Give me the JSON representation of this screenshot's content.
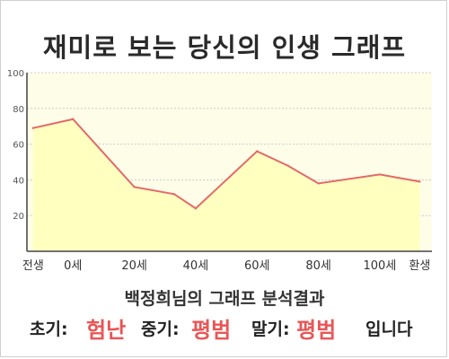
{
  "title": "재미로 보는 당신의 인생 그래프",
  "caption": "백정희님의 그래프 분석결과",
  "summary": {
    "early_label": "초기:",
    "early_value": "험난",
    "mid_label": "중기:",
    "mid_value": "평범",
    "late_label": "말기:",
    "late_value": "평범",
    "ending": "입니다"
  },
  "colors": {
    "plot_background": "#fefde8",
    "area_fill": "#ffffc0",
    "line": "#e26a6a",
    "accent_text": "#e85656",
    "grid": "#cccccc"
  },
  "chart_data": {
    "type": "area",
    "categories": [
      "전생",
      "0세",
      "20세",
      "40세",
      "60세",
      "80세",
      "100세",
      "환생"
    ],
    "x": [
      -13,
      0,
      20,
      33,
      40,
      60,
      70,
      80,
      100,
      113
    ],
    "series": [
      {
        "values": [
          69,
          74,
          36,
          32,
          24,
          56,
          48,
          38,
          43,
          39
        ]
      }
    ],
    "title": "재미로 보는 당신의 인생 그래프",
    "xlabel": "",
    "ylabel": "",
    "ylim": [
      0,
      100
    ],
    "yticks": [
      20,
      40,
      60,
      80,
      100
    ],
    "grid": true,
    "legend": "none"
  }
}
